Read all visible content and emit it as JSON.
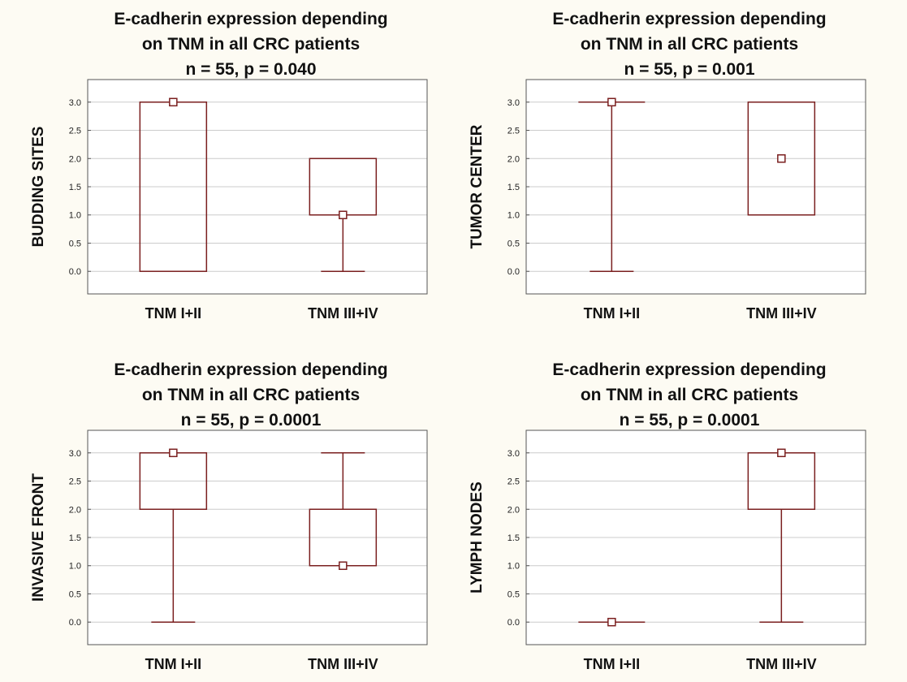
{
  "colors": {
    "background": "#fdfbf3",
    "plot_area": "#ffffff",
    "box_stroke": "#7a1f1f",
    "grid": "#cccccc",
    "frame": "#555555"
  },
  "chart_data": [
    {
      "type": "box",
      "title": [
        "E-cadherin expression depending",
        "on TNM in all CRC patients",
        "n = 55, p = 0.040"
      ],
      "ylabel": "BUDDING SITES",
      "ylim": [
        -0.4,
        3.4
      ],
      "yticks": [
        "0.0",
        "0.5",
        "1.0",
        "1.5",
        "2.0",
        "2.5",
        "3.0"
      ],
      "grid": true,
      "categories": [
        "TNM I+II",
        "TNM III+IV"
      ],
      "series": [
        {
          "name": "TNM I+II",
          "median": 3.0,
          "q1": 0.0,
          "q3": 3.0,
          "min": 0.0,
          "max": 3.0
        },
        {
          "name": "TNM III+IV",
          "median": 1.0,
          "q1": 1.0,
          "q3": 2.0,
          "min": 0.0,
          "max": 2.0
        }
      ]
    },
    {
      "type": "box",
      "title": [
        "E-cadherin expression depending",
        "on TNM in all CRC patients",
        "n = 55, p = 0.001"
      ],
      "ylabel": "TUMOR CENTER",
      "ylim": [
        -0.4,
        3.4
      ],
      "yticks": [
        "0.0",
        "0.5",
        "1.0",
        "1.5",
        "2.0",
        "2.5",
        "3.0"
      ],
      "grid": true,
      "categories": [
        "TNM I+II",
        "TNM III+IV"
      ],
      "series": [
        {
          "name": "TNM I+II",
          "median": 3.0,
          "q1": 3.0,
          "q3": 3.0,
          "min": 0.0,
          "max": 3.0
        },
        {
          "name": "TNM III+IV",
          "median": 2.0,
          "q1": 1.0,
          "q3": 3.0,
          "min": 1.0,
          "max": 3.0
        }
      ]
    },
    {
      "type": "box",
      "title": [
        "E-cadherin expression depending",
        "on TNM in all CRC patients",
        "n = 55, p = 0.0001"
      ],
      "ylabel": "INVASIVE FRONT",
      "ylim": [
        -0.4,
        3.4
      ],
      "yticks": [
        "0.0",
        "0.5",
        "1.0",
        "1.5",
        "2.0",
        "2.5",
        "3.0"
      ],
      "grid": true,
      "categories": [
        "TNM I+II",
        "TNM III+IV"
      ],
      "series": [
        {
          "name": "TNM I+II",
          "median": 3.0,
          "q1": 2.0,
          "q3": 3.0,
          "min": 0.0,
          "max": 3.0
        },
        {
          "name": "TNM III+IV",
          "median": 1.0,
          "q1": 1.0,
          "q3": 2.0,
          "min": 1.0,
          "max": 3.0
        }
      ]
    },
    {
      "type": "box",
      "title": [
        "E-cadherin expression depending",
        "on TNM in all CRC patients",
        "n = 55, p = 0.0001"
      ],
      "ylabel": "LYMPH NODES",
      "ylim": [
        -0.4,
        3.4
      ],
      "yticks": [
        "0.0",
        "0.5",
        "1.0",
        "1.5",
        "2.0",
        "2.5",
        "3.0"
      ],
      "grid": true,
      "categories": [
        "TNM I+II",
        "TNM III+IV"
      ],
      "series": [
        {
          "name": "TNM I+II",
          "median": 0.0,
          "q1": 0.0,
          "q3": 0.0,
          "min": 0.0,
          "max": 0.0
        },
        {
          "name": "TNM III+IV",
          "median": 3.0,
          "q1": 2.0,
          "q3": 3.0,
          "min": 0.0,
          "max": 3.0
        }
      ]
    }
  ]
}
